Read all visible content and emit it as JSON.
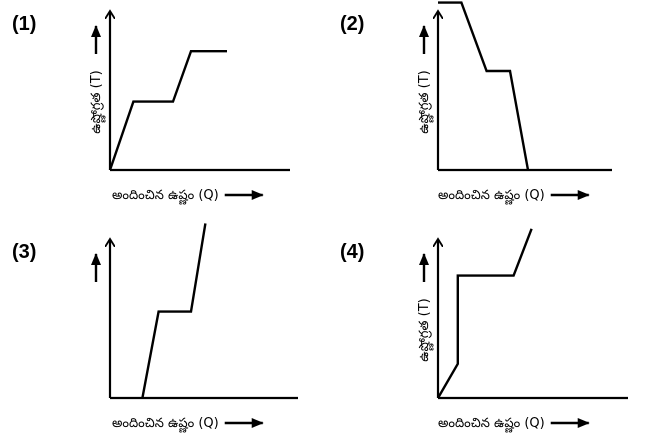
{
  "chart_data": [
    {
      "type": "line",
      "panel_label": "(1)",
      "xlabel": "అందించిన ఉష్ణం (Q)",
      "ylabel": "ఉష్ణోగ్రత (T)",
      "x": [
        0,
        1.3,
        3.5,
        4.5,
        6.5
      ],
      "y": [
        0,
        3.8,
        3.8,
        6.6,
        6.6
      ]
    },
    {
      "type": "line",
      "panel_label": "(2)",
      "xlabel": "అందించిన ఉష్ణం (Q)",
      "ylabel": "ఉష్ణోగ్రత (T)",
      "x": [
        0,
        1.3,
        2.7,
        4.0,
        5.0
      ],
      "y": [
        9.3,
        9.3,
        5.5,
        5.5,
        0
      ]
    },
    {
      "type": "line",
      "panel_label": "(3)",
      "xlabel": "అందించిన ఉష్ణం (Q)",
      "ylabel": "",
      "x": [
        1.8,
        2.7,
        4.5,
        5.3
      ],
      "y": [
        0,
        4.8,
        4.8,
        9.7
      ]
    },
    {
      "type": "line",
      "panel_label": "(4)",
      "xlabel": "అందించిన ఉష్ణం (Q)",
      "ylabel": "ఉష్ణోగ్రత (T)",
      "x": [
        0,
        1.1,
        1.1,
        4.2,
        5.2
      ],
      "y": [
        0,
        1.9,
        6.8,
        6.8,
        9.4
      ]
    }
  ]
}
